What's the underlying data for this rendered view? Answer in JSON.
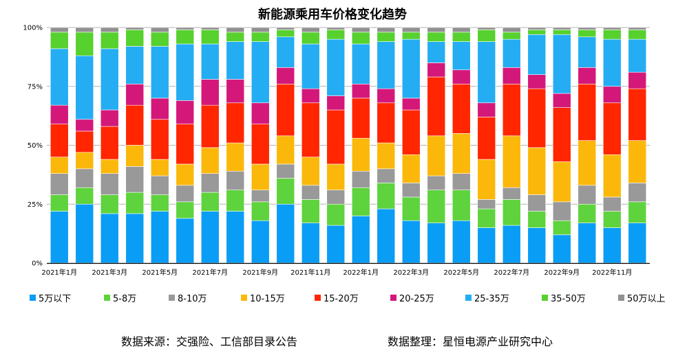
{
  "chart_data": {
    "type": "bar",
    "stacked": "percent",
    "title": "新能源乘用车价格变化趋势",
    "xlabel": "",
    "ylabel": "",
    "ylim": [
      0,
      100
    ],
    "y_ticks": [
      "0%",
      "25%",
      "50%",
      "75%",
      "100%"
    ],
    "grid": "horizontal",
    "legend_position": "bottom",
    "categories": [
      "2021年1月",
      "2021年2月",
      "2021年3月",
      "2021年4月",
      "2021年5月",
      "2021年6月",
      "2021年7月",
      "2021年8月",
      "2021年9月",
      "2021年10月",
      "2021年11月",
      "2021年12月",
      "2022年1月",
      "2022年2月",
      "2022年3月",
      "2022年4月",
      "2022年5月",
      "2022年6月",
      "2022年7月",
      "2022年8月",
      "2022年9月",
      "2022年10月",
      "2022年11月",
      "2022年12月"
    ],
    "x_tick_labels": [
      "2021年1月",
      "2021年3月",
      "2021年5月",
      "2021年7月",
      "2021年9月",
      "2021年11月",
      "2022年1月",
      "2022年3月",
      "2022年5月",
      "2022年7月",
      "2022年9月",
      "2022年11月"
    ],
    "series": [
      {
        "name": "5万以下",
        "color": "#0a9df5",
        "values": [
          22,
          25,
          21,
          21,
          22,
          19,
          22,
          22,
          18,
          25,
          17,
          16,
          20,
          23,
          18,
          17,
          18,
          15,
          16,
          15,
          12,
          17,
          15,
          17
        ]
      },
      {
        "name": "5-8万",
        "color": "#5ed33d",
        "values": [
          7,
          7,
          8,
          9,
          7,
          7,
          8,
          9,
          8,
          11,
          10,
          9,
          12,
          11,
          10,
          14,
          13,
          8,
          11,
          7,
          6,
          8,
          7,
          9
        ]
      },
      {
        "name": "8-10万",
        "color": "#999999",
        "values": [
          9,
          8,
          9,
          11,
          8,
          7,
          8,
          8,
          5,
          6,
          6,
          6,
          7,
          6,
          6,
          6,
          7,
          4,
          5,
          7,
          8,
          8,
          6,
          8
        ]
      },
      {
        "name": "10-15万",
        "color": "#fbb80b",
        "values": [
          7,
          7,
          6,
          9,
          7,
          9,
          11,
          12,
          11,
          12,
          12,
          11,
          14,
          11,
          12,
          17,
          17,
          17,
          22,
          20,
          17,
          19,
          18,
          18
        ]
      },
      {
        "name": "15-20万",
        "color": "#ff2600",
        "values": [
          14,
          9,
          14,
          17,
          17,
          17,
          18,
          17,
          17,
          22,
          23,
          23,
          17,
          17,
          19,
          25,
          21,
          18,
          22,
          25,
          23,
          24,
          22,
          22
        ]
      },
      {
        "name": "20-25万",
        "color": "#d4187a",
        "values": [
          8,
          5,
          7,
          9,
          9,
          10,
          11,
          10,
          9,
          7,
          6,
          6,
          6,
          6,
          5,
          6,
          6,
          6,
          7,
          6,
          6,
          7,
          7,
          7
        ]
      },
      {
        "name": "25-35万",
        "color": "#24adf3",
        "values": [
          24,
          27,
          26,
          16,
          22,
          24,
          15,
          16,
          26,
          13,
          19,
          24,
          17,
          20,
          25,
          9,
          12,
          26,
          12,
          17,
          25,
          13,
          20,
          14
        ]
      },
      {
        "name": "35-50万",
        "color": "#56d12e",
        "values": [
          7,
          10,
          7,
          7,
          6,
          6,
          6,
          4,
          4,
          3,
          5,
          4,
          5,
          4,
          3,
          4,
          4,
          5,
          3,
          2,
          2,
          3,
          4,
          4
        ]
      },
      {
        "name": "50万以上",
        "color": "#919191",
        "values": [
          2,
          2,
          2,
          1,
          2,
          1,
          1,
          2,
          2,
          1,
          2,
          1,
          2,
          2,
          2,
          2,
          2,
          1,
          2,
          1,
          1,
          1,
          1,
          1
        ]
      }
    ]
  },
  "footer": {
    "source": "数据来源：交强险、工信部目录公告",
    "compiler": "数据整理：星恒电源产业研究中心"
  }
}
